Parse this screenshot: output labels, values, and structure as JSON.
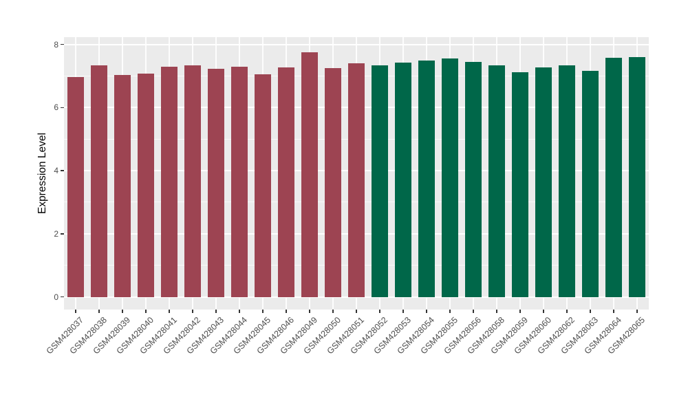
{
  "chart_data": {
    "type": "bar",
    "title": "",
    "xlabel": "",
    "ylabel": "Expression Level",
    "ylim": [
      -0.4,
      8.23
    ],
    "yticks_major": [
      0,
      2,
      4,
      6,
      8
    ],
    "yticks_minor": [
      1,
      3,
      5,
      7
    ],
    "ytick_labels": [
      "0",
      "2",
      "4",
      "6",
      "8"
    ],
    "grid": "on",
    "legend": "none",
    "panel_background": "#EBEBEB",
    "gridline_color": "#FFFFFF",
    "tick_color": "#333333",
    "tick_label_color": "#4D4D4D",
    "group_colors": {
      "group1": "#9D4452",
      "group2": "#006749"
    },
    "bars": [
      {
        "label": "GSM428037",
        "value": 6.97,
        "group": "group1"
      },
      {
        "label": "GSM428038",
        "value": 7.34,
        "group": "group1"
      },
      {
        "label": "GSM428039",
        "value": 7.03,
        "group": "group1"
      },
      {
        "label": "GSM428040",
        "value": 7.08,
        "group": "group1"
      },
      {
        "label": "GSM428041",
        "value": 7.3,
        "group": "group1"
      },
      {
        "label": "GSM428042",
        "value": 7.33,
        "group": "group1"
      },
      {
        "label": "GSM428043",
        "value": 7.23,
        "group": "group1"
      },
      {
        "label": "GSM428044",
        "value": 7.3,
        "group": "group1"
      },
      {
        "label": "GSM428045",
        "value": 7.05,
        "group": "group1"
      },
      {
        "label": "GSM428046",
        "value": 7.26,
        "group": "group1"
      },
      {
        "label": "GSM428049",
        "value": 7.76,
        "group": "group1"
      },
      {
        "label": "GSM428050",
        "value": 7.24,
        "group": "group1"
      },
      {
        "label": "GSM428051",
        "value": 7.41,
        "group": "group1"
      },
      {
        "label": "GSM428052",
        "value": 7.34,
        "group": "group2"
      },
      {
        "label": "GSM428053",
        "value": 7.43,
        "group": "group2"
      },
      {
        "label": "GSM428054",
        "value": 7.48,
        "group": "group2"
      },
      {
        "label": "GSM428055",
        "value": 7.56,
        "group": "group2"
      },
      {
        "label": "GSM428056",
        "value": 7.44,
        "group": "group2"
      },
      {
        "label": "GSM428058",
        "value": 7.34,
        "group": "group2"
      },
      {
        "label": "GSM428059",
        "value": 7.11,
        "group": "group2"
      },
      {
        "label": "GSM428060",
        "value": 7.27,
        "group": "group2"
      },
      {
        "label": "GSM428062",
        "value": 7.33,
        "group": "group2"
      },
      {
        "label": "GSM428063",
        "value": 7.16,
        "group": "group2"
      },
      {
        "label": "GSM428064",
        "value": 7.58,
        "group": "group2"
      },
      {
        "label": "GSM428065",
        "value": 7.6,
        "group": "group2"
      }
    ]
  }
}
